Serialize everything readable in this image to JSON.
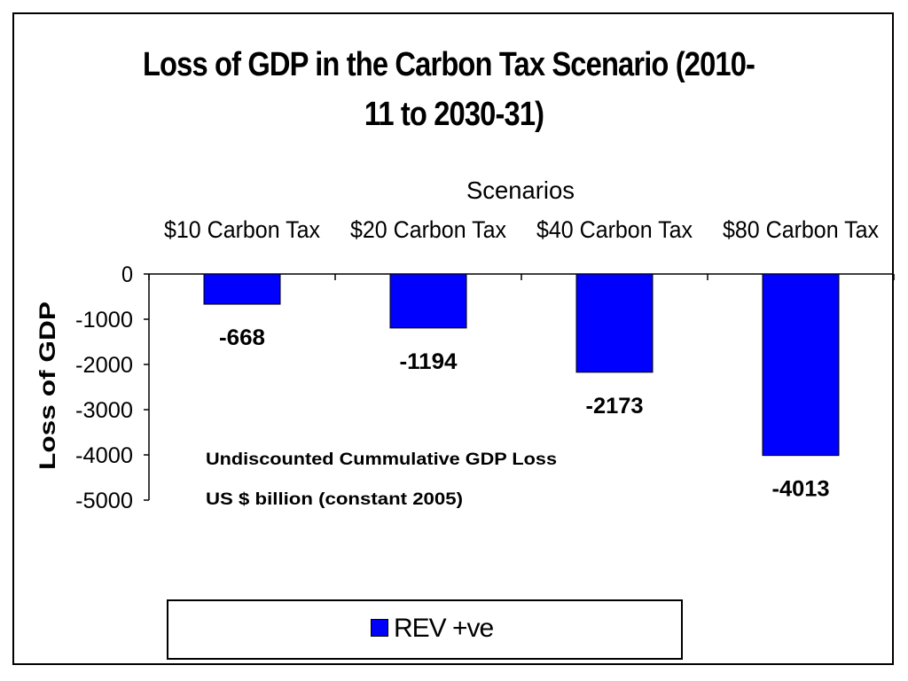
{
  "chart_data": {
    "type": "bar",
    "title_line1": "Loss of GDP in the  Carbon Tax Scenario (2010-",
    "title_line2": "11 to 2030-31)",
    "xlabel": "Scenarios",
    "ylabel": "Loss of GDP",
    "categories": [
      "$10 Carbon Tax",
      "$20 Carbon Tax",
      "$40 Carbon Tax",
      "$80 Carbon Tax"
    ],
    "series": [
      {
        "name": "REV +ve",
        "values": [
          -668,
          -1194,
          -2173,
          -4013
        ],
        "color": "#0000ff"
      }
    ],
    "data_labels": [
      "-668",
      "-1194",
      "-2173",
      "-4013"
    ],
    "ylim": [
      -5000,
      0
    ],
    "yticks": [
      0,
      -1000,
      -2000,
      -3000,
      -4000,
      -5000
    ],
    "annotations": [
      "Undiscounted Cummulative GDP Loss",
      "US $ billion (constant 2005)"
    ],
    "legend_position": "bottom"
  }
}
